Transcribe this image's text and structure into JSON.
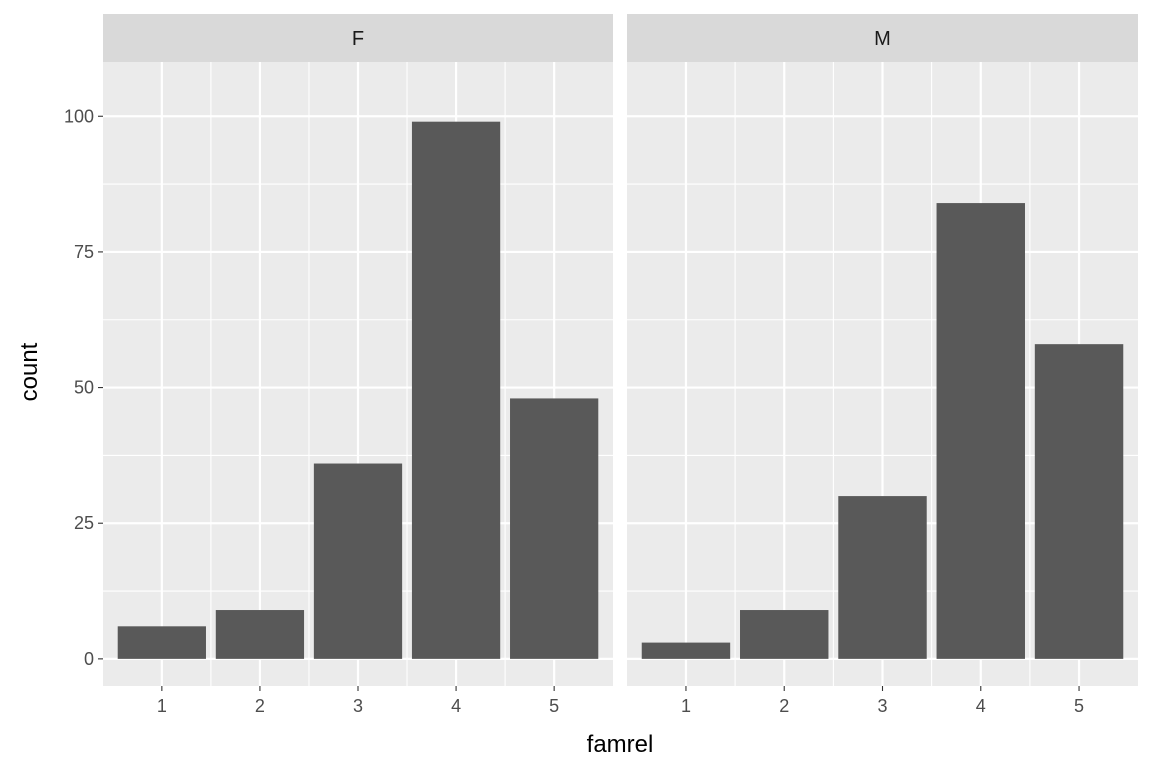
{
  "chart_data": {
    "type": "bar",
    "xlabel": "famrel",
    "ylabel": "count",
    "categories": [
      "1",
      "2",
      "3",
      "4",
      "5"
    ],
    "yticks": [
      0,
      25,
      50,
      75,
      100
    ],
    "ylim": [
      -5,
      110
    ],
    "grid": true,
    "facets": [
      {
        "label": "F",
        "values": [
          6,
          9,
          36,
          99,
          48
        ]
      },
      {
        "label": "M",
        "values": [
          3,
          9,
          30,
          84,
          58
        ]
      }
    ],
    "colors": {
      "bar": "#595959",
      "panel_bg": "#ebebeb",
      "strip_bg": "#d9d9d9",
      "grid": "#ffffff"
    }
  }
}
